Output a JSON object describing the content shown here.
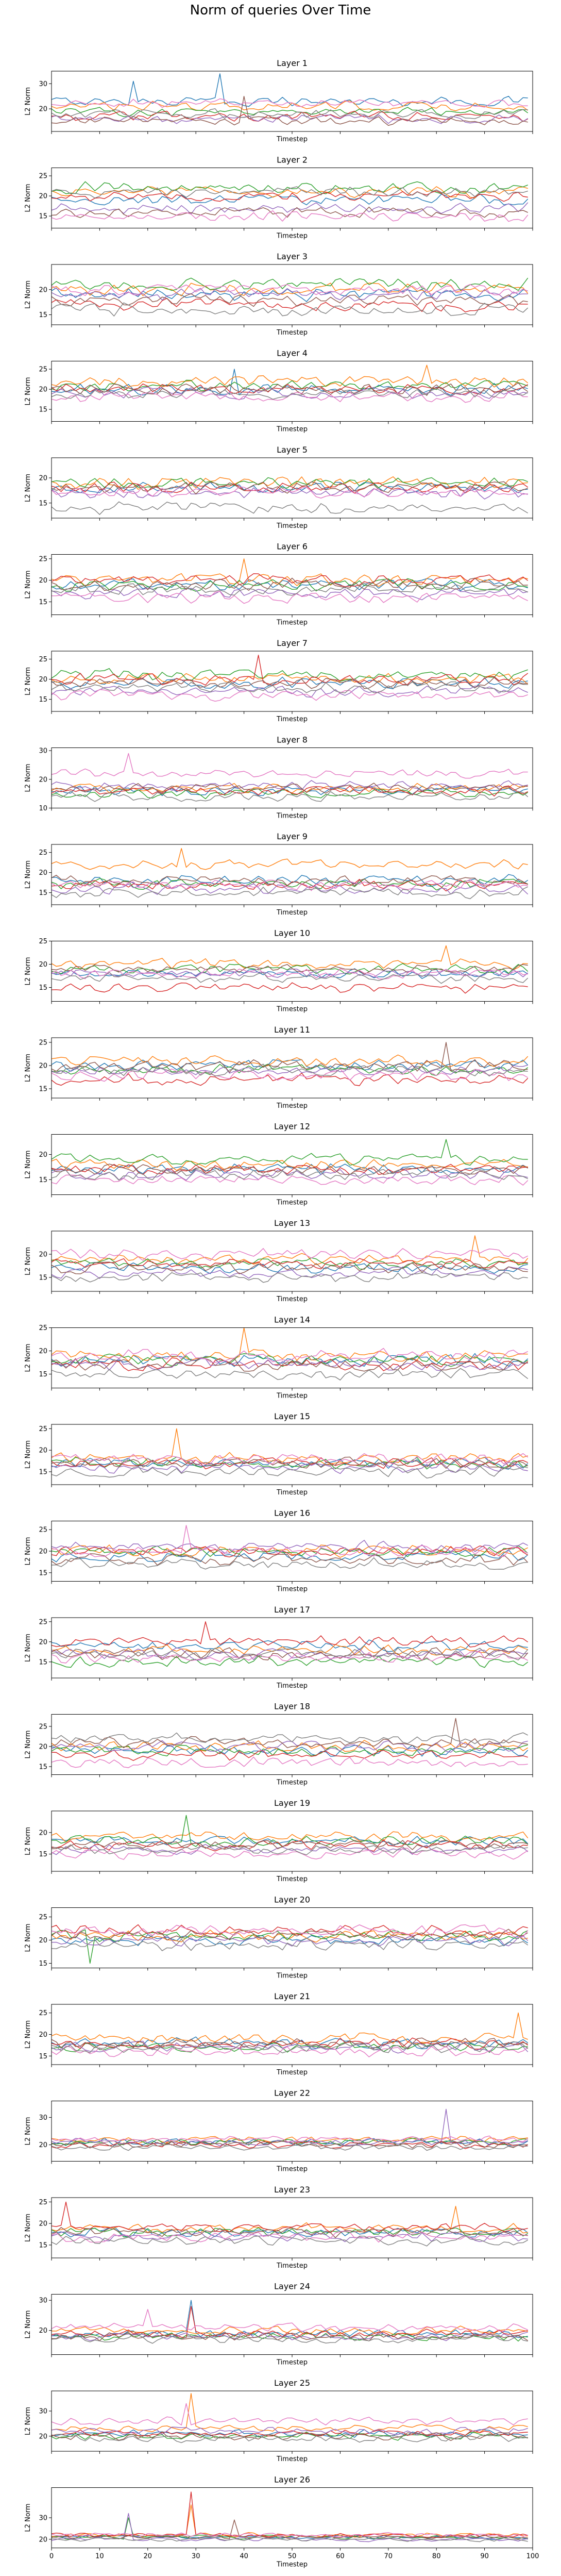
{
  "chart_data": {
    "type": "line",
    "title": "Norm of queries Over Time",
    "xlabel": "Timestep",
    "ylabel": "L2 Norm",
    "xlim": [
      0,
      100
    ],
    "xticks": [
      0,
      10,
      20,
      30,
      40,
      50,
      60,
      70,
      80,
      90,
      100
    ],
    "x": {
      "start": 0,
      "end": 99,
      "step": 1
    },
    "grid": false,
    "legend": "none",
    "colors": [
      "#1f77b4",
      "#ff7f0e",
      "#2ca02c",
      "#d62728",
      "#9467bd",
      "#8c564b",
      "#e377c2",
      "#7f7f7f"
    ],
    "panels": [
      {
        "title": "Layer 1",
        "ylim": [
          11,
          35
        ],
        "yticks": [
          20,
          30
        ],
        "base": [
          23,
          21,
          19,
          17,
          16,
          15,
          22,
          18
        ],
        "noise": 2.2,
        "spikes": [
          [
            0,
            17,
            31
          ],
          [
            0,
            35,
            34
          ],
          [
            5,
            40,
            25
          ]
        ]
      },
      {
        "title": "Layer 2",
        "ylim": [
          12,
          27
        ],
        "yticks": [
          15,
          20,
          25
        ],
        "base": [
          19,
          21,
          22,
          20,
          17,
          16,
          15,
          21
        ],
        "noise": 1.6,
        "spikes": []
      },
      {
        "title": "Layer 3",
        "ylim": [
          13,
          25
        ],
        "yticks": [
          15,
          20
        ],
        "base": [
          19,
          20,
          21,
          17,
          19,
          18,
          20,
          16
        ],
        "noise": 1.5,
        "spikes": []
      },
      {
        "title": "Layer 4",
        "ylim": [
          12,
          27
        ],
        "yticks": [
          15,
          20,
          25
        ],
        "base": [
          20,
          22,
          21,
          20,
          19,
          20,
          18,
          19
        ],
        "noise": 1.7,
        "spikes": [
          [
            1,
            78,
            26
          ],
          [
            0,
            38,
            25
          ]
        ]
      },
      {
        "title": "Layer 5",
        "ylim": [
          12,
          24
        ],
        "yticks": [
          15,
          20
        ],
        "base": [
          18,
          19,
          19,
          18,
          17,
          18,
          17,
          14
        ],
        "noise": 1.4,
        "spikes": []
      },
      {
        "title": "Layer 6",
        "ylim": [
          12,
          26
        ],
        "yticks": [
          15,
          20,
          25
        ],
        "base": [
          19,
          20,
          19,
          20,
          17,
          19,
          16,
          18
        ],
        "noise": 1.6,
        "spikes": [
          [
            1,
            40,
            25
          ]
        ]
      },
      {
        "title": "Layer 7",
        "ylim": [
          12,
          27
        ],
        "yticks": [
          15,
          20,
          25
        ],
        "base": [
          19,
          20,
          21,
          20,
          17,
          19,
          16,
          18
        ],
        "noise": 1.7,
        "spikes": [
          [
            3,
            43,
            26
          ]
        ]
      },
      {
        "title": "Layer 8",
        "ylim": [
          10,
          31
        ],
        "yticks": [
          10,
          20,
          30
        ],
        "base": [
          16,
          17,
          15,
          16,
          18,
          17,
          22,
          14
        ],
        "noise": 2.0,
        "spikes": [
          [
            6,
            16,
            29
          ]
        ]
      },
      {
        "title": "Layer 9",
        "ylim": [
          12,
          27
        ],
        "yticks": [
          15,
          20,
          25
        ],
        "base": [
          18,
          22,
          17,
          17,
          16,
          18,
          17,
          15
        ],
        "noise": 1.6,
        "spikes": [
          [
            1,
            27,
            26
          ]
        ]
      },
      {
        "title": "Layer 10",
        "ylim": [
          12,
          25
        ],
        "yticks": [
          15,
          20,
          25
        ],
        "base": [
          18,
          20,
          19,
          15,
          18,
          19,
          18,
          17
        ],
        "noise": 1.3,
        "spikes": [
          [
            1,
            82,
            24
          ]
        ]
      },
      {
        "title": "Layer 11",
        "ylim": [
          13,
          26
        ],
        "yticks": [
          15,
          20,
          25
        ],
        "base": [
          20,
          21,
          19,
          17,
          19,
          20,
          18,
          19
        ],
        "noise": 1.5,
        "spikes": [
          [
            5,
            82,
            25
          ]
        ]
      },
      {
        "title": "Layer 12",
        "ylim": [
          12,
          24
        ],
        "yticks": [
          15,
          20
        ],
        "base": [
          17,
          18,
          19,
          17,
          16,
          17,
          15,
          16
        ],
        "noise": 1.3,
        "spikes": [
          [
            2,
            82,
            23
          ]
        ]
      },
      {
        "title": "Layer 13",
        "ylim": [
          12,
          25
        ],
        "yticks": [
          15,
          20
        ],
        "base": [
          17,
          19,
          18,
          18,
          16,
          17,
          20,
          15
        ],
        "noise": 1.4,
        "spikes": [
          [
            1,
            88,
            24
          ]
        ]
      },
      {
        "title": "Layer 14",
        "ylim": [
          12,
          25
        ],
        "yticks": [
          15,
          20,
          25
        ],
        "base": [
          18,
          19,
          18,
          17,
          17,
          17,
          19,
          15
        ],
        "noise": 1.6,
        "spikes": [
          [
            1,
            40,
            25
          ]
        ]
      },
      {
        "title": "Layer 15",
        "ylim": [
          12,
          26
        ],
        "yticks": [
          15,
          20,
          25
        ],
        "base": [
          17,
          18,
          17,
          17,
          16,
          17,
          18,
          15
        ],
        "noise": 1.5,
        "spikes": [
          [
            1,
            26,
            25
          ]
        ]
      },
      {
        "title": "Layer 16",
        "ylim": [
          13,
          27
        ],
        "yticks": [
          15,
          20,
          25
        ],
        "base": [
          19,
          20,
          20,
          20,
          21,
          18,
          20,
          17
        ],
        "noise": 1.6,
        "spikes": [
          [
            6,
            28,
            26
          ]
        ]
      },
      {
        "title": "Layer 17",
        "ylim": [
          11,
          26
        ],
        "yticks": [
          15,
          20,
          25
        ],
        "base": [
          19,
          18,
          15,
          20,
          17,
          17,
          16,
          17
        ],
        "noise": 1.7,
        "spikes": [
          [
            3,
            32,
            25
          ]
        ]
      },
      {
        "title": "Layer 18",
        "ylim": [
          13,
          28
        ],
        "yticks": [
          15,
          20,
          25
        ],
        "base": [
          19,
          20,
          19,
          18,
          20,
          21,
          16,
          22
        ],
        "noise": 1.6,
        "spikes": [
          [
            5,
            84,
            27
          ]
        ]
      },
      {
        "title": "Layer 19",
        "ylim": [
          11,
          25
        ],
        "yticks": [
          15,
          20
        ],
        "base": [
          18,
          19,
          18,
          17,
          16,
          17,
          15,
          16
        ],
        "noise": 1.4,
        "spikes": [
          [
            2,
            28,
            24
          ]
        ]
      },
      {
        "title": "Layer 20",
        "ylim": [
          14,
          27
        ],
        "yticks": [
          15,
          20,
          25
        ],
        "base": [
          20,
          21,
          21,
          22,
          20,
          21,
          22,
          19
        ],
        "noise": 1.5,
        "spikes": [
          [
            2,
            8,
            15
          ]
        ]
      },
      {
        "title": "Layer 21",
        "ylim": [
          13,
          27
        ],
        "yticks": [
          15,
          20,
          25
        ],
        "base": [
          18,
          19,
          17,
          18,
          17,
          18,
          16,
          17
        ],
        "noise": 1.5,
        "spikes": [
          [
            1,
            97,
            25
          ]
        ]
      },
      {
        "title": "Layer 22",
        "ylim": [
          14,
          36
        ],
        "yticks": [
          20,
          30
        ],
        "base": [
          21,
          22,
          21,
          20,
          21,
          20,
          22,
          19
        ],
        "noise": 1.6,
        "spikes": [
          [
            4,
            82,
            33
          ]
        ]
      },
      {
        "title": "Layer 23",
        "ylim": [
          12,
          26
        ],
        "yticks": [
          15,
          20,
          25
        ],
        "base": [
          18,
          19,
          18,
          19,
          17,
          18,
          17,
          16
        ],
        "noise": 1.4,
        "spikes": [
          [
            3,
            3,
            25
          ],
          [
            1,
            84,
            24
          ]
        ]
      },
      {
        "title": "Layer 24",
        "ylim": [
          12,
          32
        ],
        "yticks": [
          10,
          20,
          30
        ],
        "base": [
          19,
          20,
          18,
          19,
          18,
          18,
          21,
          17
        ],
        "noise": 1.6,
        "spikes": [
          [
            0,
            29,
            30
          ],
          [
            3,
            29,
            28
          ],
          [
            6,
            20,
            27
          ]
        ]
      },
      {
        "title": "Layer 25",
        "ylim": [
          14,
          38
        ],
        "yticks": [
          20,
          30
        ],
        "base": [
          21,
          23,
          20,
          21,
          22,
          20,
          26,
          19
        ],
        "noise": 1.8,
        "spikes": [
          [
            1,
            29,
            37
          ],
          [
            6,
            28,
            33
          ]
        ]
      },
      {
        "title": "Layer 26",
        "ylim": [
          16,
          44
        ],
        "yticks": [
          20,
          30
        ],
        "base": [
          21,
          22,
          21,
          22,
          20,
          21,
          22,
          20
        ],
        "noise": 1.2,
        "spikes": [
          [
            3,
            29,
            42
          ],
          [
            1,
            29,
            36
          ],
          [
            4,
            16,
            32
          ],
          [
            2,
            16,
            30
          ],
          [
            5,
            38,
            29
          ]
        ]
      }
    ]
  }
}
